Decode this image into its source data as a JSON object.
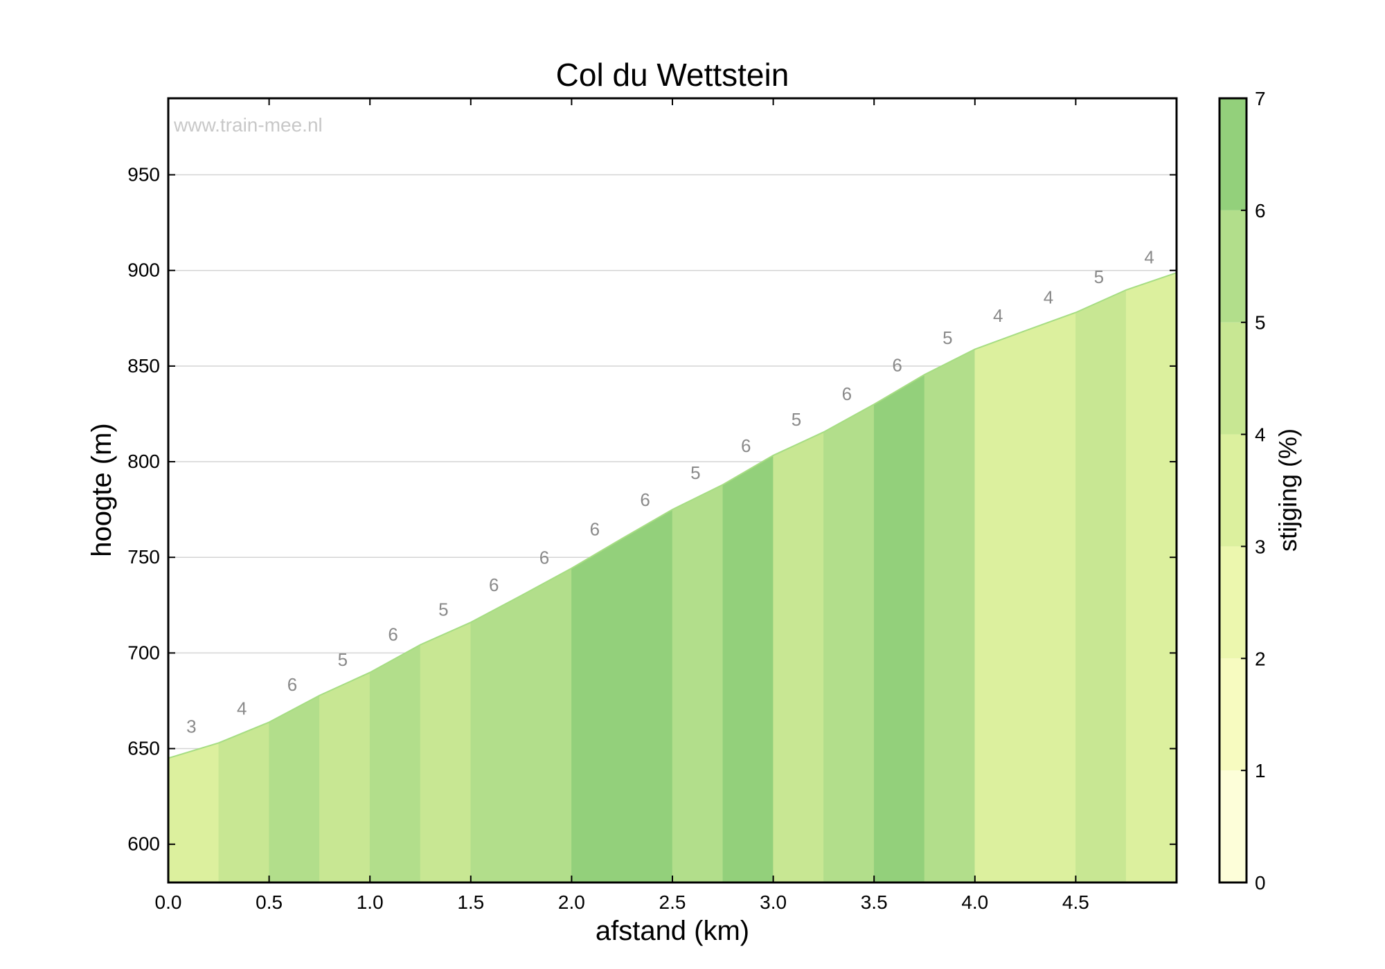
{
  "chart_data": {
    "type": "area",
    "title": "Col du Wettstein",
    "watermark": "www.train-mee.nl",
    "xlabel": "afstand (km)",
    "ylabel": "hoogte (m)",
    "xlim": [
      0,
      5
    ],
    "ylim": [
      580,
      990
    ],
    "xticks": [
      "0.0",
      "0.5",
      "1.0",
      "1.5",
      "2.0",
      "2.5",
      "3.0",
      "3.5",
      "4.0",
      "4.5"
    ],
    "yticks": [
      "600",
      "650",
      "700",
      "750",
      "800",
      "850",
      "900",
      "950"
    ],
    "grid": "horizontal",
    "distance_km": [
      0,
      0.25,
      0.5,
      0.75,
      1.0,
      1.25,
      1.5,
      1.75,
      2.0,
      2.25,
      2.5,
      2.75,
      3.0,
      3.25,
      3.5,
      3.75,
      4.0,
      4.25,
      4.5,
      4.75,
      5.0
    ],
    "elevation_m": [
      645,
      653,
      663.8,
      677.8,
      689.8,
      704.3,
      716,
      730,
      744.3,
      759.8,
      775,
      788,
      803.3,
      815.5,
      830,
      845.5,
      858.8,
      868.5,
      878,
      889.8,
      898.8
    ],
    "gradient_labels": [
      "3",
      "4",
      "6",
      "5",
      "6",
      "5",
      "6",
      "6",
      "6",
      "6",
      "5",
      "6",
      "5",
      "6",
      "6",
      "5",
      "4",
      "4",
      "5",
      "4"
    ],
    "colorbar": {
      "label": "stijging (%)",
      "ticks": [
        "0",
        "1",
        "2",
        "3",
        "4",
        "5",
        "6",
        "7"
      ],
      "range": [
        0,
        7
      ],
      "colors": [
        "#fdfed9",
        "#f7fbc0",
        "#ecf7ae",
        "#dcf09e",
        "#c8e793",
        "#b2de8b",
        "#93d07b"
      ]
    },
    "line_color": "#a6dd83"
  }
}
